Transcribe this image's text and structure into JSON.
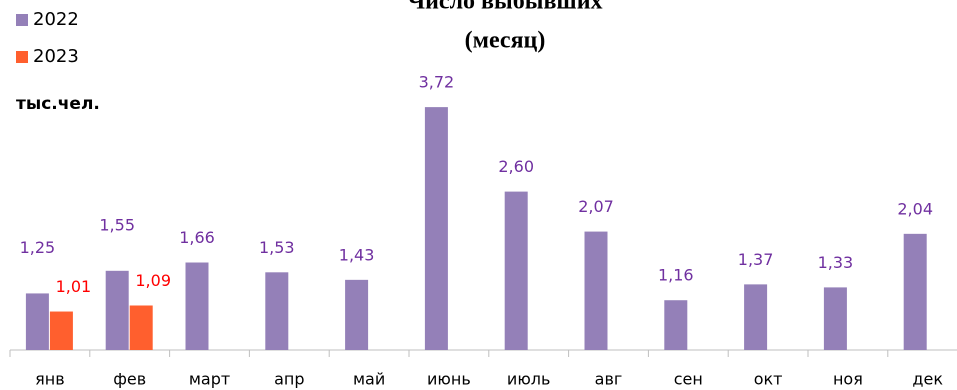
{
  "chart_data": {
    "type": "bar",
    "title": "Число выбывших",
    "subtitle": "(месяц)",
    "unit_label": "тыс.чел.",
    "categories": [
      "янв",
      "фев",
      "март",
      "апр",
      "май",
      "июнь",
      "июль",
      "авг",
      "сен",
      "окт",
      "ноя",
      "дек"
    ],
    "series": [
      {
        "name": "2022",
        "color": "#9480b8",
        "values": [
          1.25,
          1.55,
          1.66,
          1.53,
          1.43,
          3.72,
          2.6,
          2.07,
          1.16,
          1.37,
          1.33,
          2.04
        ],
        "value_labels": [
          "1,25",
          "1,55",
          "1,66",
          "1,53",
          "1,43",
          "3,72",
          "2,60",
          "2,07",
          "1,16",
          "1,37",
          "1,33",
          "2,04"
        ],
        "label_color": "#7030a0"
      },
      {
        "name": "2023",
        "color": "#ff5f2e",
        "values": [
          1.01,
          1.09,
          null,
          null,
          null,
          null,
          null,
          null,
          null,
          null,
          null,
          null
        ],
        "value_labels": [
          "1,01",
          "1,09",
          null,
          null,
          null,
          null,
          null,
          null,
          null,
          null,
          null,
          null
        ],
        "label_color": "#ff0000"
      }
    ],
    "ylim": [
      0.5,
      4
    ],
    "legend": "top-left"
  }
}
